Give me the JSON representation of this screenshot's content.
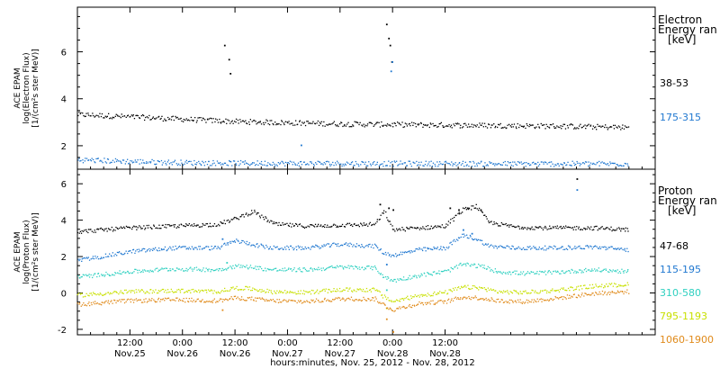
{
  "chart_data": [
    {
      "type": "scatter",
      "panel": "electron",
      "ylabel_lines": [
        "ACE EPAM",
        "log(Electron Flux)",
        "[1/(cm²s ster MeV)]"
      ],
      "yticks": [
        2,
        4,
        6
      ],
      "ylim": [
        1.0,
        7.9
      ],
      "xlim": [
        -12,
        120
      ],
      "legend_title": [
        "Electron",
        "Energy ran",
        "[keV]"
      ],
      "series": [
        {
          "name": "38-53",
          "color": "#000000",
          "points": [
            [
              -12,
              3.35
            ],
            [
              0,
              3.25
            ],
            [
              12,
              3.15
            ],
            [
              24,
              3.05
            ],
            [
              36,
              3.0
            ],
            [
              48,
              2.95
            ],
            [
              60,
              2.92
            ],
            [
              72,
              2.9
            ],
            [
              84,
              2.88
            ],
            [
              96,
              2.86
            ],
            [
              108,
              2.82
            ],
            [
              114,
              2.8
            ]
          ],
          "outliers": [
            [
              21.5,
              6.3
            ],
            [
              22.5,
              5.7
            ],
            [
              22.8,
              5.1
            ],
            [
              58.5,
              7.2
            ],
            [
              59.0,
              6.6
            ],
            [
              59.3,
              6.3
            ],
            [
              59.7,
              5.6
            ]
          ]
        },
        {
          "name": "175-315",
          "color": "#1f77d0",
          "points": [
            [
              -12,
              1.42
            ],
            [
              0,
              1.35
            ],
            [
              12,
              1.3
            ],
            [
              24,
              1.28
            ],
            [
              36,
              1.27
            ],
            [
              48,
              1.27
            ],
            [
              60,
              1.26
            ],
            [
              72,
              1.26
            ],
            [
              84,
              1.25
            ],
            [
              96,
              1.25
            ],
            [
              108,
              1.25
            ],
            [
              114,
              1.25
            ]
          ],
          "outliers": [
            [
              39,
              2.05
            ],
            [
              59.5,
              5.2
            ],
            [
              59.8,
              5.6
            ]
          ]
        }
      ]
    },
    {
      "type": "scatter",
      "panel": "proton",
      "ylabel_lines": [
        "ACE EPAM",
        "log(Proton Flux)",
        "[1/(cm²s ster MeV)]"
      ],
      "yticks": [
        -2,
        0,
        2,
        4,
        6
      ],
      "ylim": [
        -2.3,
        6.8
      ],
      "xlim": [
        -12,
        120
      ],
      "legend_title": [
        "Proton",
        "Energy ran",
        "[keV]"
      ],
      "series": [
        {
          "name": "47-68",
          "color": "#000000",
          "points": [
            [
              -12,
              3.4
            ],
            [
              0,
              3.6
            ],
            [
              10,
              3.7
            ],
            [
              20,
              3.8
            ],
            [
              24,
              4.1
            ],
            [
              28,
              4.5
            ],
            [
              33,
              3.8
            ],
            [
              40,
              3.7
            ],
            [
              48,
              3.75
            ],
            [
              56,
              3.8
            ],
            [
              58,
              4.5
            ],
            [
              60,
              3.5
            ],
            [
              66,
              3.6
            ],
            [
              72,
              3.7
            ],
            [
              76,
              4.6
            ],
            [
              79,
              4.8
            ],
            [
              82,
              3.9
            ],
            [
              88,
              3.65
            ],
            [
              96,
              3.6
            ],
            [
              106,
              3.6
            ],
            [
              114,
              3.5
            ]
          ],
          "outliers": [
            [
              57,
              4.9
            ],
            [
              59,
              4.7
            ],
            [
              60,
              4.6
            ],
            [
              73,
              4.7
            ],
            [
              75,
              4.6
            ],
            [
              77,
              4.7
            ],
            [
              80,
              4.6
            ],
            [
              102,
              6.3
            ]
          ]
        },
        {
          "name": "115-195",
          "color": "#1f77d0",
          "points": [
            [
              -12,
              1.8
            ],
            [
              0,
              2.3
            ],
            [
              10,
              2.5
            ],
            [
              20,
              2.5
            ],
            [
              24,
              2.9
            ],
            [
              28,
              2.7
            ],
            [
              32,
              2.5
            ],
            [
              40,
              2.5
            ],
            [
              48,
              2.7
            ],
            [
              56,
              2.6
            ],
            [
              58,
              2.2
            ],
            [
              60,
              2.1
            ],
            [
              66,
              2.4
            ],
            [
              72,
              2.5
            ],
            [
              76,
              3.2
            ],
            [
              79,
              3.0
            ],
            [
              82,
              2.6
            ],
            [
              88,
              2.5
            ],
            [
              96,
              2.5
            ],
            [
              106,
              2.55
            ],
            [
              114,
              2.4
            ]
          ],
          "outliers": [
            [
              21,
              3.0
            ],
            [
              58.5,
              1.6
            ],
            [
              76,
              3.5
            ],
            [
              78,
              3.3
            ],
            [
              102,
              5.7
            ]
          ]
        },
        {
          "name": "310-580",
          "color": "#2fd0c0",
          "points": [
            [
              -12,
              0.9
            ],
            [
              0,
              1.2
            ],
            [
              10,
              1.35
            ],
            [
              20,
              1.3
            ],
            [
              24,
              1.5
            ],
            [
              28,
              1.45
            ],
            [
              32,
              1.3
            ],
            [
              40,
              1.3
            ],
            [
              48,
              1.45
            ],
            [
              56,
              1.4
            ],
            [
              58,
              0.9
            ],
            [
              60,
              0.7
            ],
            [
              66,
              1.0
            ],
            [
              72,
              1.2
            ],
            [
              76,
              1.6
            ],
            [
              80,
              1.5
            ],
            [
              84,
              1.2
            ],
            [
              90,
              1.1
            ],
            [
              96,
              1.15
            ],
            [
              106,
              1.3
            ],
            [
              114,
              1.2
            ]
          ],
          "outliers": [
            [
              22,
              1.7
            ],
            [
              58.5,
              0.2
            ]
          ]
        },
        {
          "name": "795-1193",
          "color": "#c8e000",
          "points": [
            [
              -12,
              -0.1
            ],
            [
              0,
              0.1
            ],
            [
              10,
              0.15
            ],
            [
              20,
              0.1
            ],
            [
              24,
              0.3
            ],
            [
              28,
              0.25
            ],
            [
              32,
              0.1
            ],
            [
              40,
              0.05
            ],
            [
              48,
              0.2
            ],
            [
              56,
              0.2
            ],
            [
              58,
              -0.2
            ],
            [
              60,
              -0.45
            ],
            [
              66,
              -0.1
            ],
            [
              72,
              0.05
            ],
            [
              76,
              0.35
            ],
            [
              80,
              0.3
            ],
            [
              84,
              0.1
            ],
            [
              90,
              0.05
            ],
            [
              96,
              0.15
            ],
            [
              106,
              0.4
            ],
            [
              114,
              0.5
            ]
          ],
          "outliers": [
            [
              58.5,
              -0.8
            ]
          ]
        },
        {
          "name": "1060-1900",
          "color": "#e08a1a",
          "points": [
            [
              -12,
              -0.6
            ],
            [
              0,
              -0.4
            ],
            [
              10,
              -0.35
            ],
            [
              20,
              -0.4
            ],
            [
              24,
              -0.25
            ],
            [
              28,
              -0.3
            ],
            [
              32,
              -0.4
            ],
            [
              40,
              -0.45
            ],
            [
              48,
              -0.3
            ],
            [
              56,
              -0.3
            ],
            [
              58,
              -0.65
            ],
            [
              60,
              -0.9
            ],
            [
              66,
              -0.55
            ],
            [
              72,
              -0.45
            ],
            [
              76,
              -0.2
            ],
            [
              80,
              -0.25
            ],
            [
              84,
              -0.4
            ],
            [
              90,
              -0.45
            ],
            [
              96,
              -0.3
            ],
            [
              106,
              0.0
            ],
            [
              114,
              0.1
            ]
          ],
          "outliers": [
            [
              21,
              -0.9
            ],
            [
              58.5,
              -1.4
            ],
            [
              60,
              -2.1
            ]
          ]
        }
      ]
    }
  ],
  "x_axis": {
    "ticks": [
      {
        "hour": 0,
        "time": "12:00",
        "date": "Nov.25"
      },
      {
        "hour": 12,
        "time": "0:00",
        "date": "Nov.26"
      },
      {
        "hour": 24,
        "time": "12:00",
        "date": "Nov.26"
      },
      {
        "hour": 36,
        "time": "0:00",
        "date": "Nov.27"
      },
      {
        "hour": 48,
        "time": "12:00",
        "date": "Nov.27"
      },
      {
        "hour": 60,
        "time": "0:00",
        "date": "Nov.28"
      },
      {
        "hour": 72,
        "time": "12:00",
        "date": "Nov.28"
      }
    ],
    "label": "hours:minutes, Nov. 25, 2012 - Nov. 28, 2012"
  }
}
